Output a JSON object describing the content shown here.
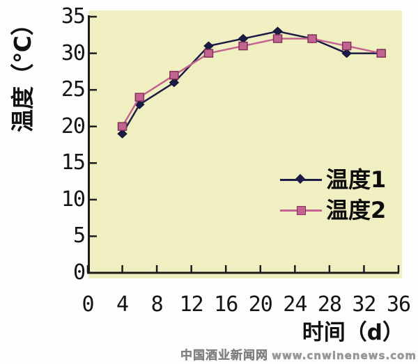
{
  "watermark": {
    "site_name": "中国酒业新闻网",
    "url": "www.cnwinenews.com",
    "color": "#9b9b9b"
  },
  "chart_data": {
    "type": "line",
    "title": "",
    "x": [
      4,
      6,
      10,
      14,
      18,
      22,
      26,
      30,
      34
    ],
    "series": [
      {
        "name": "温度1",
        "values": [
          19,
          23,
          26,
          31,
          32,
          33,
          32,
          30,
          30
        ],
        "color": "#1c1b45",
        "marker": "diamond",
        "marker_border": "#12102e"
      },
      {
        "name": "温度2",
        "values": [
          20,
          24,
          27,
          30,
          31,
          32,
          32,
          31,
          30
        ],
        "color": "#c2648f",
        "marker": "square",
        "marker_border": "#81335c"
      }
    ],
    "xlabel": "时间（d）",
    "ylabel": "温度（℃）",
    "xlim": [
      0,
      36
    ],
    "ylim": [
      0,
      35
    ],
    "xticks": [
      0,
      4,
      8,
      12,
      16,
      20,
      24,
      28,
      32,
      36
    ],
    "yticks": [
      0,
      5,
      10,
      15,
      20,
      25,
      30,
      35
    ],
    "grid": false,
    "legend_position": "inside-right",
    "plot_bg": "#f0efc2",
    "axis_color": "#1c1c1c",
    "tick_label_color": "#141414"
  }
}
